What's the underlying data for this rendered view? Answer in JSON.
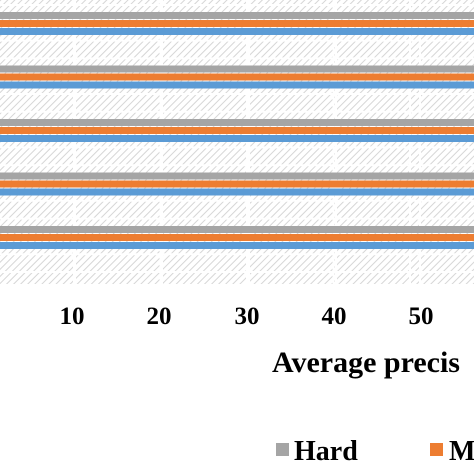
{
  "chart_data": {
    "type": "bar",
    "orientation": "horizontal",
    "xlabel": "Average precis",
    "x_ticks": [
      10,
      20,
      30,
      40,
      50
    ],
    "grid": true,
    "legend_position": "bottom",
    "categories": [
      "",
      "",
      "",
      "",
      ""
    ],
    "series": [
      {
        "name": "Hard",
        "color": "#a5a5a5",
        "values": [
          65,
          65,
          65,
          65,
          65
        ]
      },
      {
        "name": "M",
        "color": "#ed7d31",
        "values": [
          65,
          65,
          65,
          65,
          65
        ]
      },
      {
        "name": "",
        "color": "#5b9bd5",
        "values": [
          65,
          65,
          65,
          65,
          65
        ]
      }
    ]
  }
}
